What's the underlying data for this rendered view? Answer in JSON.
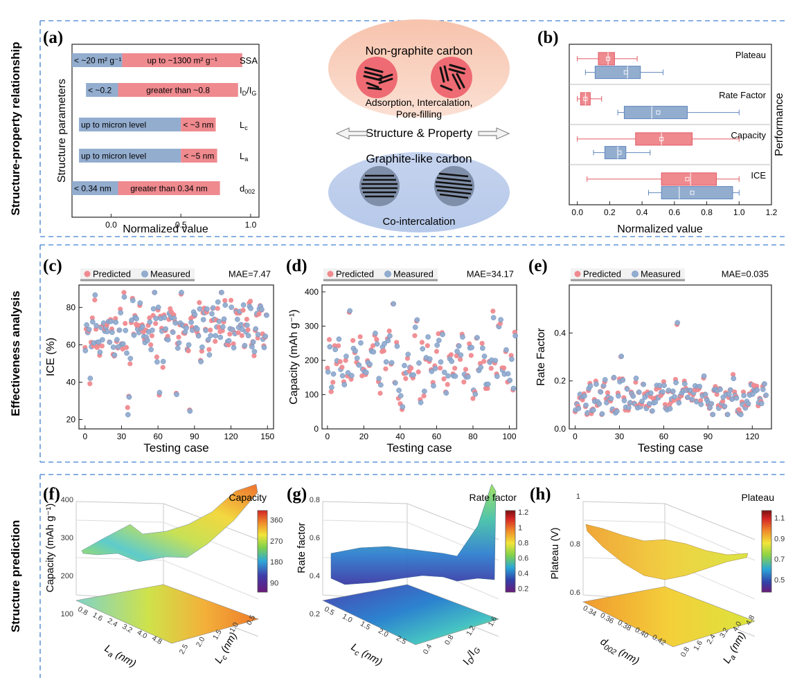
{
  "rows": [
    {
      "label": "Structure-property relationship"
    },
    {
      "label": "Effectiveness analysis"
    },
    {
      "label": "Structure prediction"
    }
  ],
  "panel_letters": [
    "(a)",
    "(b)",
    "(c)",
    "(d)",
    "(e)",
    "(f)",
    "(g)",
    "(h)"
  ],
  "colors": {
    "red": "#ef8a8f",
    "blue": "#93adcf",
    "red_dark": "#e05a63",
    "blue_dark": "#5f86bd",
    "dash": "#3f7fd0"
  },
  "diagram": {
    "non_graphite_title": "Non-graphite carbon",
    "non_graphite_mech_1": "Adsorption, Intercalation,",
    "non_graphite_mech_2": "Pore-filling",
    "center_label": "Structure & Property",
    "graphite_title": "Graphite-like carbon",
    "graphite_mech": "Co-intercalation"
  },
  "chart_data": [
    {
      "panel": "(a)",
      "type": "bar",
      "orientation": "horizontal",
      "xlabel": "Normalized value",
      "ylabel": "Structure parameters",
      "xlim": [
        -0.28,
        1.06
      ],
      "xticks": [
        0.0,
        0.5,
        1.0
      ],
      "xtick_labels": [
        "0.0",
        "0.5",
        "1.0"
      ],
      "bars": [
        {
          "param": "SSA",
          "blue_range": [
            -0.28,
            0.08
          ],
          "red_range": [
            0.08,
            0.94
          ],
          "blue_text": "< ~20 m² g⁻¹",
          "red_text": "up to ~1300 m² g⁻¹"
        },
        {
          "param": "I_D/I_G",
          "blue_range": [
            -0.18,
            0.05
          ],
          "red_range": [
            0.05,
            0.91
          ],
          "blue_text": "< ~0.2",
          "red_text": "greater than ~0.8"
        },
        {
          "param": "L_c",
          "blue_range": [
            -0.23,
            0.5
          ],
          "red_range": [
            0.5,
            0.75
          ],
          "blue_text": "up to micron level",
          "red_text": "< ~3 nm"
        },
        {
          "param": "L_a",
          "blue_range": [
            -0.23,
            0.5
          ],
          "red_range": [
            0.5,
            0.76
          ],
          "blue_text": "up to micron level",
          "red_text": "< ~5 nm"
        },
        {
          "param": "d_002",
          "blue_range": [
            -0.28,
            0.05
          ],
          "red_range": [
            0.05,
            0.78
          ],
          "blue_text": "< 0.34 nm",
          "red_text": "greater than 0.34 nm"
        }
      ],
      "param_labels": [
        {
          "main": "SSA",
          "sub": ""
        },
        {
          "main": "I",
          "sub": "D",
          "mid": "/I",
          "sub2": "G"
        },
        {
          "main": "L",
          "sub": "c"
        },
        {
          "main": "L",
          "sub": "a"
        },
        {
          "main": "d",
          "sub": "002"
        }
      ]
    },
    {
      "panel": "(b)",
      "type": "box",
      "orientation": "horizontal",
      "xlabel": "Normalized value",
      "ylabel": "Performance",
      "xlim": [
        -0.05,
        1.2
      ],
      "xticks": [
        0.0,
        0.2,
        0.4,
        0.6,
        0.8,
        1.0,
        1.2
      ],
      "xtick_labels": [
        "0.0",
        "0.2",
        "0.4",
        "0.6",
        "0.8",
        "1.0",
        "1.2"
      ],
      "groups": [
        {
          "name": "Plateau",
          "red": {
            "min": 0.0,
            "q1": 0.13,
            "median": 0.19,
            "q3": 0.23,
            "max": 0.37,
            "mean": 0.19
          },
          "blue": {
            "min": 0.05,
            "q1": 0.11,
            "median": 0.31,
            "q3": 0.39,
            "max": 0.53,
            "mean": 0.3
          }
        },
        {
          "name": "Rate Factor",
          "red": {
            "min": 0.0,
            "q1": 0.02,
            "median": 0.05,
            "q3": 0.08,
            "max": 0.15,
            "mean": 0.05
          },
          "blue": {
            "min": 0.25,
            "q1": 0.29,
            "median": 0.46,
            "q3": 0.68,
            "max": 1.0,
            "mean": 0.5
          }
        },
        {
          "name": "Capacity",
          "red": {
            "min": 0.0,
            "q1": 0.36,
            "median": 0.52,
            "q3": 0.71,
            "max": 1.0,
            "mean": 0.52
          },
          "blue": {
            "min": 0.1,
            "q1": 0.17,
            "median": 0.25,
            "q3": 0.3,
            "max": 0.45,
            "mean": 0.26
          }
        },
        {
          "name": "ICE",
          "red": {
            "min": 0.06,
            "q1": 0.52,
            "median": 0.7,
            "q3": 0.86,
            "max": 1.0,
            "mean": 0.68
          },
          "blue": {
            "min": 0.44,
            "q1": 0.52,
            "median": 0.63,
            "q3": 0.96,
            "max": 1.0,
            "mean": 0.71
          }
        }
      ]
    },
    {
      "panel": "(c)",
      "type": "scatter",
      "xlabel": "Testing case",
      "ylabel": "ICE (%)",
      "xlim": [
        -5,
        155
      ],
      "ylim": [
        15,
        92
      ],
      "xticks": [
        0,
        30,
        60,
        90,
        120,
        150
      ],
      "yticks": [
        20,
        40,
        60,
        80
      ],
      "legend": {
        "predicted": "Predicted",
        "measured": "Measured",
        "placement": "top"
      },
      "annotation": "MAE=7.47",
      "n": 150,
      "center": 68,
      "spread": 22,
      "min": 22,
      "max": 88,
      "seed": 11
    },
    {
      "panel": "(d)",
      "type": "scatter",
      "xlabel": "Testing case",
      "ylabel": "Capacity (mAh g⁻¹)",
      "xlim": [
        -3,
        104
      ],
      "ylim": [
        0,
        420
      ],
      "xticks": [
        0,
        20,
        40,
        60,
        80,
        100
      ],
      "yticks": [
        0,
        100,
        200,
        300,
        400
      ],
      "legend": {
        "predicted": "Predicted",
        "measured": "Measured",
        "placement": "top"
      },
      "annotation": "MAE=34.17",
      "n": 104,
      "center": 205,
      "spread": 150,
      "min": 50,
      "max": 365,
      "seed": 23
    },
    {
      "panel": "(e)",
      "type": "scatter",
      "xlabel": "Testing case",
      "ylabel": "Rate Factor",
      "xlim": [
        -4,
        133
      ],
      "ylim": [
        0.0,
        0.6
      ],
      "xticks": [
        0,
        30,
        60,
        90,
        120
      ],
      "yticks": [
        0.0,
        0.2,
        0.4
      ],
      "legend": {
        "predicted": "Predicted",
        "measured": "Measured",
        "placement": "top"
      },
      "annotation": "MAE=0.035",
      "n": 130,
      "center": 0.13,
      "spread": 0.1,
      "min": 0.06,
      "max": 0.5,
      "seed": 37
    },
    {
      "panel": "(f)",
      "type": "surface3d",
      "title": "Capacity",
      "zlabel": "Capacity (mAh g⁻¹)",
      "xlabel": "L_a (nm)",
      "ylabel": "L_c (nm)",
      "zticks": [
        100,
        200,
        300,
        400
      ],
      "xticks": [
        "0.8",
        "1.6",
        "2.4",
        "3.2",
        "4.0",
        "4.8"
      ],
      "yticks": [
        "0.5",
        "1.0",
        "1.5",
        "2.0",
        "2.5"
      ],
      "colorbar_ticks": [
        90,
        180,
        270,
        360
      ],
      "colorbar_range": [
        50,
        400
      ]
    },
    {
      "panel": "(g)",
      "type": "surface3d",
      "title": "Rate factor",
      "zlabel": "Rate factor",
      "xlabel": "L_c (nm)",
      "ylabel": "I_D/I_G",
      "zticks": [
        0.2,
        0.4,
        0.6,
        0.8
      ],
      "xticks": [
        "0.5",
        "1.0",
        "1.5",
        "2.0",
        "2.5"
      ],
      "yticks": [
        "0.4",
        "0.8",
        "1.2",
        "1.6"
      ],
      "colorbar_ticks": [
        0.2,
        0.4,
        0.6,
        0.8,
        1.0,
        1.2
      ],
      "colorbar_range": [
        0.15,
        1.22
      ]
    },
    {
      "panel": "(h)",
      "type": "surface3d",
      "title": "Plateau",
      "zlabel": "Plateau (V)",
      "xlabel": "d_002 (nm)",
      "ylabel": "L_a (nm)",
      "zticks": [
        0.6,
        0.8,
        1.0
      ],
      "xticks": [
        "0.34",
        "0.36",
        "0.38",
        "0.40",
        "0.42"
      ],
      "yticks": [
        "0.8",
        "1.6",
        "2.4",
        "3.2",
        "4.0",
        "4.8"
      ],
      "colorbar_ticks": [
        0.5,
        0.7,
        0.9,
        1.1
      ],
      "colorbar_range": [
        0.38,
        1.17
      ]
    }
  ]
}
